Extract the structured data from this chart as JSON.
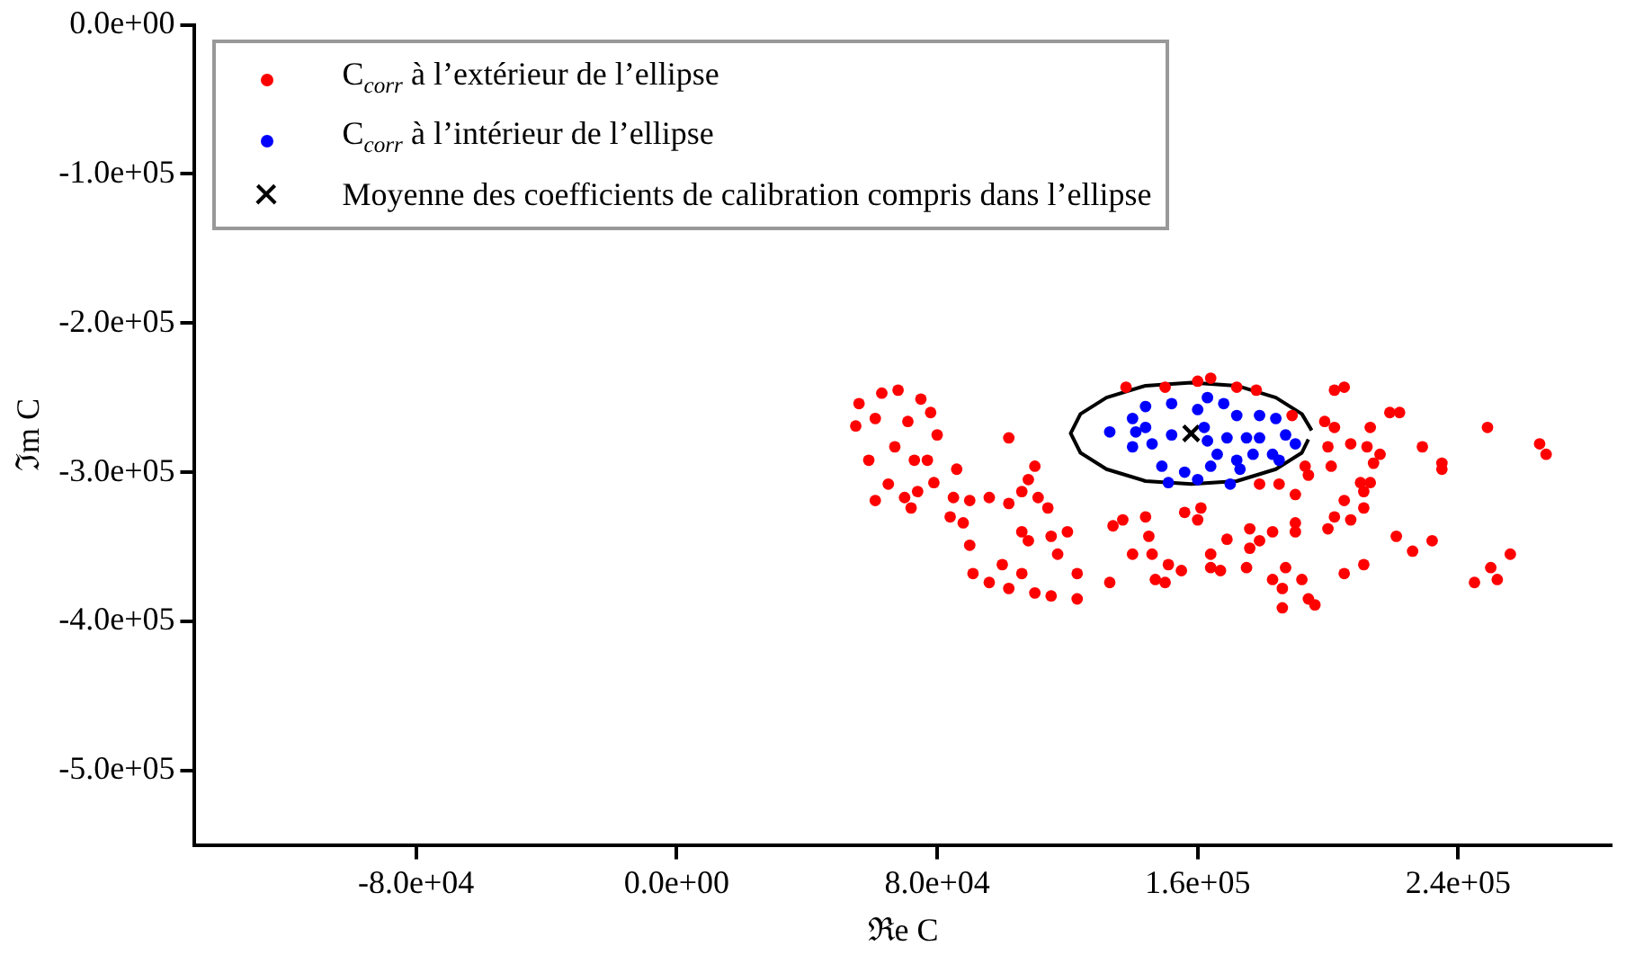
{
  "chart_data": {
    "type": "scatter",
    "xlabel": "ℜe C",
    "ylabel": "ℑm C",
    "xlim": [
      -148000,
      287000
    ],
    "ylim": [
      -550000,
      0
    ],
    "xticks": [
      {
        "value": -80000,
        "label": "-8.0e+04"
      },
      {
        "value": 0,
        "label": "0.0e+00"
      },
      {
        "value": 80000,
        "label": "8.0e+04"
      },
      {
        "value": 160000,
        "label": "1.6e+05"
      },
      {
        "value": 240000,
        "label": "2.4e+05"
      }
    ],
    "yticks": [
      {
        "value": 0,
        "label": "0.0e+00"
      },
      {
        "value": -100000,
        "label": "-1.0e+05"
      },
      {
        "value": -200000,
        "label": "-2.0e+05"
      },
      {
        "value": -300000,
        "label": "-3.0e+05"
      },
      {
        "value": -400000,
        "label": "-4.0e+05"
      },
      {
        "value": -500000,
        "label": "-5.0e+05"
      }
    ],
    "grid": false,
    "legend": "top left",
    "series": [
      {
        "name": "C$_{corr}$ à l’extérieur de l’ellipse",
        "color": "#ff0000",
        "marker": "circle",
        "x": [
          56000,
          63000,
          68000,
          75000,
          55000,
          61000,
          71000,
          78000,
          80000,
          59000,
          67000,
          73000,
          77000,
          65000,
          61000,
          70000,
          74000,
          79000,
          72000,
          102000,
          110000,
          86000,
          85000,
          90000,
          96000,
          88000,
          84000,
          106000,
          108000,
          102000,
          111000,
          114000,
          90000,
          106000,
          108000,
          115000,
          120000,
          117000,
          100000,
          91000,
          96000,
          102000,
          106000,
          110000,
          115000,
          123000,
          123000,
          134000,
          137000,
          144000,
          145000,
          140000,
          146000,
          151000,
          155000,
          147000,
          150000,
          133000,
          156000,
          160000,
          138000,
          150000,
          160000,
          164000,
          172000,
          178000,
          202000,
          205000,
          189000,
          199000,
          202000,
          200000,
          207000,
          193000,
          201000,
          213000,
          219000,
          222000,
          212000,
          216000,
          214000,
          210000,
          213000,
          211000,
          205000,
          229000,
          235000,
          235000,
          249000,
          265000,
          267000,
          179000,
          185000,
          190000,
          194000,
          211000,
          202000,
          207000,
          190000,
          190000,
          200000,
          183000,
          176000,
          169000,
          176000,
          179000,
          164000,
          175000,
          164000,
          167000,
          187000,
          192000,
          183000,
          186000,
          186000,
          194000,
          196000,
          205000,
          211000,
          221000,
          226000,
          232000,
          256000,
          250000,
          252000,
          245000,
          161000
        ],
        "values": [
          -254000,
          -247000,
          -245000,
          -251000,
          -269000,
          -264000,
          -266000,
          -260000,
          -275000,
          -292000,
          -283000,
          -292000,
          -292000,
          -308000,
          -319000,
          -317000,
          -313000,
          -307000,
          -324000,
          -277000,
          -296000,
          -298000,
          -317000,
          -319000,
          -317000,
          -334000,
          -330000,
          -313000,
          -305000,
          -321000,
          -317000,
          -324000,
          -349000,
          -340000,
          -346000,
          -343000,
          -340000,
          -355000,
          -362000,
          -368000,
          -374000,
          -378000,
          -368000,
          -381000,
          -383000,
          -368000,
          -385000,
          -336000,
          -332000,
          -330000,
          -343000,
          -355000,
          -355000,
          -362000,
          -366000,
          -372000,
          -374000,
          -374000,
          -327000,
          -332000,
          -243000,
          -243000,
          -239000,
          -237000,
          -243000,
          -245000,
          -245000,
          -243000,
          -262000,
          -266000,
          -270000,
          -283000,
          -281000,
          -296000,
          -296000,
          -270000,
          -260000,
          -260000,
          -283000,
          -288000,
          -294000,
          -307000,
          -307000,
          -313000,
          -319000,
          -283000,
          -294000,
          -298000,
          -270000,
          -281000,
          -288000,
          -308000,
          -308000,
          -315000,
          -302000,
          -324000,
          -330000,
          -332000,
          -334000,
          -340000,
          -338000,
          -340000,
          -338000,
          -345000,
          -351000,
          -346000,
          -355000,
          -364000,
          -364000,
          -366000,
          -364000,
          -372000,
          -372000,
          -378000,
          -391000,
          -385000,
          -389000,
          -368000,
          -362000,
          -343000,
          -353000,
          -346000,
          -355000,
          -364000,
          -372000,
          -374000,
          -324000
        ]
      },
      {
        "name": "C$_{corr}$ à l’intérieur de l’ellipse",
        "color": "#0000ff",
        "marker": "circle",
        "x": [
          133000,
          140000,
          141000,
          144000,
          152000,
          160000,
          146000,
          152000,
          162000,
          149000,
          156000,
          160000,
          144000,
          140000,
          151000,
          163000,
          168000,
          172000,
          179000,
          184000,
          187000,
          190000,
          183000,
          177000,
          172000,
          166000,
          163000,
          169000,
          175000,
          179000,
          170000,
          173000,
          164000,
          185000
        ],
        "values": [
          -273000,
          -264000,
          -273000,
          -256000,
          -254000,
          -258000,
          -281000,
          -275000,
          -270000,
          -296000,
          -300000,
          -305000,
          -270000,
          -283000,
          -307000,
          -250000,
          -254000,
          -262000,
          -262000,
          -264000,
          -275000,
          -281000,
          -288000,
          -288000,
          -292000,
          -288000,
          -279000,
          -277000,
          -277000,
          -277000,
          -308000,
          -298000,
          -296000,
          -292000
        ]
      },
      {
        "type": "line",
        "color": "#000000",
        "marker": "none",
        "line_style": "solid",
        "x": [
          195000,
          192000,
          184000,
          172000,
          158000,
          144000,
          132000,
          124000,
          121000,
          124000,
          132000,
          144000,
          158000,
          172000,
          184000,
          192000,
          194000
        ],
        "values": [
          -272000,
          -261000,
          -250000,
          -242000,
          -240000,
          -242000,
          -250000,
          -261000,
          -274000,
          -287000,
          -298000,
          -306000,
          -308000,
          -306000,
          -298000,
          -287000,
          -278000
        ]
      },
      {
        "name": "Moyenne des coefficients de calibration compris dans l’ellipse",
        "color": "#000000",
        "marker": "cross",
        "x": [
          158000
        ],
        "values": [
          -274000
        ]
      }
    ]
  }
}
